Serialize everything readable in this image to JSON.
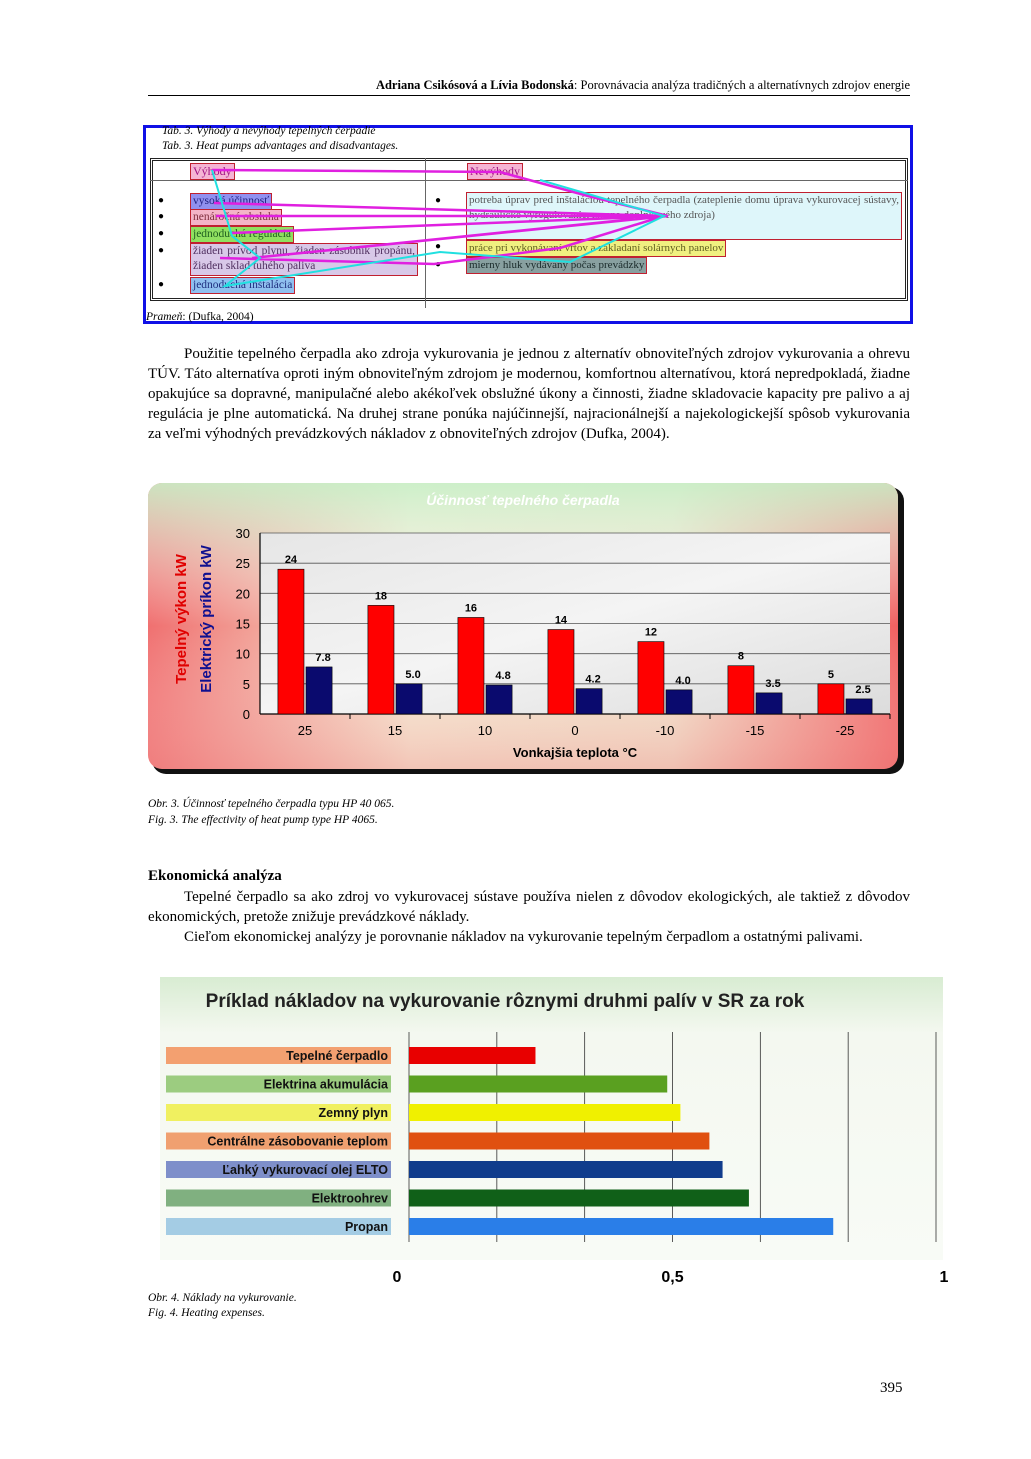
{
  "header": {
    "authors": "Adriana Csikósová a Lívia Bodonská",
    "title": ": Porovnávacia analýza tradičných a alternatívnych zdrojov energie"
  },
  "table": {
    "caption_sk": "Tab. 3.  Výhody a nevýhody tepelných čerpadie",
    "caption_en": "Tab. 3.  Heat pumps advantages and disadvantages.",
    "col_advantages": "Výhody",
    "col_disadvantages": "Nevýhody",
    "advantages": [
      "vysoká účinnosť",
      "nenáročná obsluha",
      "jednoduchá regulácia",
      "žiaden prívod plynu, žiaden zásobník propánu, žiaden sklad tuhého paliva",
      "jednoduchá inštalácia"
    ],
    "disadvantages": [
      "potreba úprav pred inštaláciou tepelného čerpadla (zateplenie domu úprava vykurovacej sústavy, hydraulické vyregulovanie, zmena doplnkového zdroja)",
      "práce pri vykonávaní vrtov a zakladaní solárnych panelov",
      "mierny hluk vydávaný počas prevádzky"
    ],
    "source_label": "Prameň",
    "source_text": ": (Dufka, 2004)"
  },
  "paragraph1": "Použitie tepelného čerpadla ako zdroja vykurovania je jednou z alternatív obnoviteľných zdrojov vykurovania a ohrevu TÚV. Táto alternatíva oproti iným obnoviteľným zdrojom je modernou, komfortnou alternatívou, ktorá nepredpokladá, žiadne opakujúce sa dopravné, manipulačné alebo akékoľvek obslužné úkony a činnosti, žiadne skladovacie kapacity pre palivo a aj regulácia je plne automatická. Na druhej strane ponúka najúčinnejší, najracionálnejší a najekologickejší spôsob vykurovania za veľmi výhodných prevádzkových nákladov z obnoviteľných zdrojov (Dufka, 2004).",
  "figure3": {
    "caption_sk": "Obr. 3.  Účinnosť tepelného čerpadla typu HP 40 065.",
    "caption_en": "Fig. 3.  The effectivity of heat pump type HP 4065."
  },
  "section_heading": "Ekonomická analýza",
  "paragraph2": "Tepelné čerpadlo sa ako zdroj vo vykurovacej sústave používa nielen z dôvodov ekologických, ale taktiež z dôvodov ekonomických, pretože znižuje prevádzkové náklady.",
  "paragraph3": "Cieľom ekonomickej analýzy je porovnanie nákladov na vykurovanie tepelným čerpadlom a ostatnými palivami.",
  "figure4": {
    "caption_sk": "Obr. 4.  Náklady na vykurovanie.",
    "caption_en": "Fig. 4.  Heating expenses."
  },
  "page_number": "395",
  "chart_data": [
    {
      "type": "bar",
      "title": "Účinnosť tepelného čerpadla",
      "xlabel": "Vonkajšia teplota °C",
      "ylabel": "Tepelný výkon kW",
      "ylabel2": "Elektrický príkon kW",
      "categories": [
        "25",
        "15",
        "10",
        "0",
        "-10",
        "-15",
        "-25"
      ],
      "series": [
        {
          "name": "Tepelný výkon kW",
          "values": [
            24,
            18,
            16,
            14,
            12,
            8,
            5
          ],
          "color": "#ff0000"
        },
        {
          "name": "Elektrický príkon kW",
          "values": [
            7.8,
            5.0,
            4.8,
            4.2,
            4.0,
            3.5,
            2.5
          ],
          "color": "#0a0a6e"
        }
      ],
      "value_labels": [
        [
          "24",
          "18",
          "16",
          "14",
          "12",
          "8",
          "5"
        ],
        [
          "7.8",
          "5.0",
          "4.8",
          "4.2",
          "4.0",
          "3.5",
          "2.5"
        ]
      ],
      "y_ticks": [
        "0",
        "5",
        "10",
        "15",
        "20",
        "25",
        "30"
      ],
      "ylim": [
        0,
        30
      ],
      "grid": true
    },
    {
      "type": "bar",
      "orientation": "horizontal",
      "title": "Príklad nákladov na vykurovanie rôznymi druhmi palív v SR za rok",
      "categories": [
        "Tepelné čerpadlo",
        "Elektrina akumulácia",
        "Zemný plyn",
        "Centrálne zásobovanie teplom",
        "Ľahký vykurovací olej ELTO",
        "Elektroohrev",
        "Propan"
      ],
      "values": [
        0.24,
        0.49,
        0.515,
        0.57,
        0.595,
        0.645,
        0.805
      ],
      "colors": [
        "#e80000",
        "#5aa020",
        "#f0f000",
        "#e05010",
        "#103c8c",
        "#106018",
        "#2a7ee8"
      ],
      "label_colors": [
        "#f3a070",
        "#9ccc80",
        "#f0f060",
        "#f0a070",
        "#7e8fca",
        "#80b080",
        "#a4cce4"
      ],
      "x_ticks": [
        "0",
        "0,5",
        "1"
      ],
      "xlim": [
        0,
        1
      ],
      "grid": true
    }
  ]
}
